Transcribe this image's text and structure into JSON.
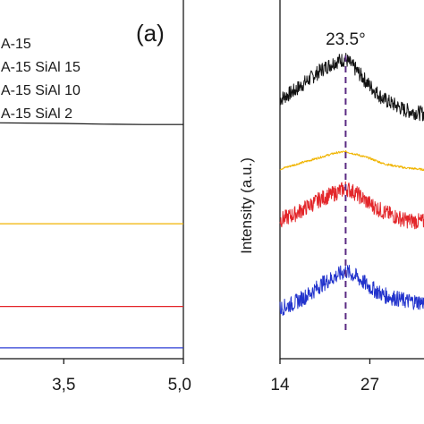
{
  "chart_data": [
    {
      "type": "line",
      "panel_label": "(a)",
      "xlabel": "",
      "ylabel": "",
      "xlim": [
        2.7,
        5.0
      ],
      "ylim": [
        0,
        1
      ],
      "x_ticks": [
        {
          "value": 3.5,
          "label": "3,5"
        },
        {
          "value": 5.0,
          "label": "5,0"
        }
      ],
      "legend": {
        "position": "top-left",
        "entries": [
          "A-15",
          "A-15 SiAl 15",
          "A-15 SiAl 10",
          "A-15 SiAl 2"
        ]
      },
      "series": [
        {
          "name": "A-15",
          "color": "#111111",
          "x": [
            2.7,
            3.5,
            4.0,
            4.5,
            5.0
          ],
          "y": [
            0.71,
            0.708,
            0.706,
            0.705,
            0.705
          ]
        },
        {
          "name": "A-15 SiAl 15",
          "color": "#f0b400",
          "x": [
            2.7,
            3.5,
            4.0,
            4.5,
            5.0
          ],
          "y": [
            0.405,
            0.405,
            0.405,
            0.405,
            0.405
          ]
        },
        {
          "name": "A-15 SiAl 10",
          "color": "#e3262a",
          "x": [
            2.7,
            3.5,
            4.0,
            4.5,
            5.0
          ],
          "y": [
            0.155,
            0.155,
            0.155,
            0.155,
            0.155
          ]
        },
        {
          "name": "A-15 SiAl 2",
          "color": "#2f3fd6",
          "x": [
            2.7,
            3.5,
            4.0,
            4.5,
            5.0
          ],
          "y": [
            0.03,
            0.03,
            0.03,
            0.03,
            0.03
          ]
        }
      ]
    },
    {
      "type": "line",
      "xlabel": "",
      "ylabel": "Intensity (a.u.)",
      "xlim": [
        14,
        36
      ],
      "ylim": [
        0,
        1
      ],
      "x_ticks": [
        {
          "value": 14,
          "label": "14"
        },
        {
          "value": 27,
          "label": "27"
        }
      ],
      "annotation": {
        "x": 23.5,
        "label": "23.5°",
        "style": "dashed vertical line"
      },
      "series": [
        {
          "name": "",
          "color": "#111111",
          "noise": 0.028,
          "x": [
            14,
            16,
            18,
            20,
            22,
            23.5,
            25,
            27,
            29,
            32,
            36
          ],
          "y": [
            0.83,
            0.86,
            0.9,
            0.94,
            0.97,
            0.98,
            0.94,
            0.88,
            0.83,
            0.79,
            0.77
          ]
        },
        {
          "name": "",
          "color": "#f0b400",
          "noise": 0.004,
          "x": [
            14,
            16,
            18,
            20,
            22,
            23.5,
            25,
            27,
            29,
            32,
            36
          ],
          "y": [
            0.57,
            0.585,
            0.6,
            0.615,
            0.63,
            0.635,
            0.625,
            0.61,
            0.59,
            0.575,
            0.565
          ]
        },
        {
          "name": "",
          "color": "#e3262a",
          "noise": 0.03,
          "x": [
            14,
            16,
            18,
            20,
            22,
            23.5,
            25,
            27,
            29,
            32,
            36
          ],
          "y": [
            0.38,
            0.4,
            0.43,
            0.46,
            0.48,
            0.5,
            0.48,
            0.44,
            0.41,
            0.38,
            0.37
          ]
        },
        {
          "name": "",
          "color": "#2233cc",
          "noise": 0.03,
          "x": [
            14,
            16,
            18,
            20,
            22,
            23.5,
            25,
            27,
            29,
            32,
            36
          ],
          "y": [
            0.05,
            0.07,
            0.1,
            0.14,
            0.17,
            0.19,
            0.17,
            0.13,
            0.1,
            0.08,
            0.07
          ]
        }
      ]
    }
  ]
}
